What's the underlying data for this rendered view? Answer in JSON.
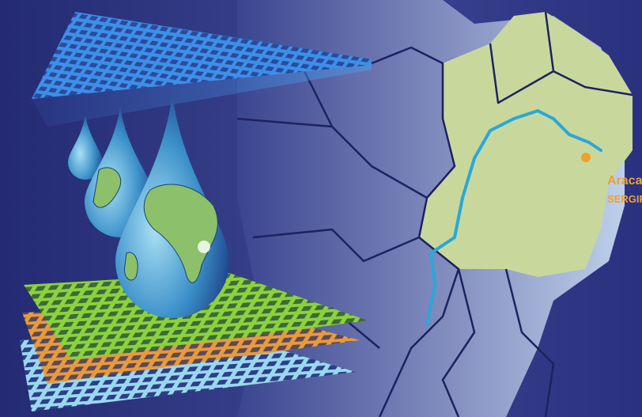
{
  "map": {
    "labels": {
      "city": "Aracaj",
      "state": "SERGIP"
    }
  }
}
